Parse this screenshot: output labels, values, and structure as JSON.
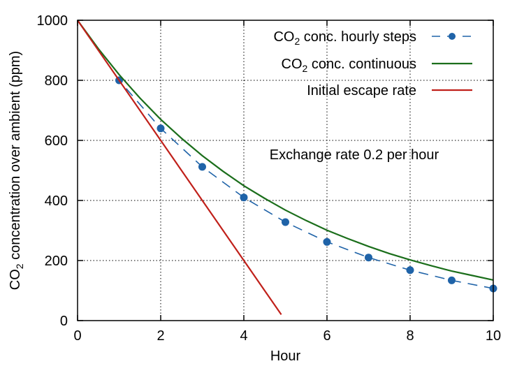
{
  "chart_data": {
    "type": "line",
    "xlabel": "Hour",
    "ylabel": {
      "prefix": "CO",
      "sub": "2",
      "suffix": " concentration over ambient (ppm)"
    },
    "xlim": [
      0,
      10
    ],
    "ylim": [
      0,
      1000
    ],
    "xticks": [
      0,
      2,
      4,
      6,
      8,
      10
    ],
    "yticks": [
      0,
      200,
      400,
      600,
      800,
      1000
    ],
    "grid": true,
    "legend_position": "top-right",
    "annotation": "Exchange rate 0.2 per hour",
    "series": [
      {
        "key": "hourly",
        "name": {
          "prefix": "CO",
          "sub": "2",
          "suffix": " conc. hourly steps"
        },
        "style": "dashed-points",
        "color": "#1f63a8",
        "x": [
          0,
          1,
          2,
          3,
          4,
          5,
          6,
          7,
          8,
          9,
          10
        ],
        "y": [
          1000,
          800,
          640,
          512,
          410,
          328,
          262,
          210,
          168,
          134,
          107
        ]
      },
      {
        "key": "continuous",
        "name": {
          "prefix": "CO",
          "sub": "2",
          "suffix": " conc. continuous"
        },
        "style": "solid",
        "color": "#1b6e1b",
        "x": [
          0,
          0.5,
          1,
          1.5,
          2,
          2.5,
          3,
          3.5,
          4,
          4.5,
          5,
          5.5,
          6,
          6.5,
          7,
          7.5,
          8,
          8.5,
          9,
          9.5,
          10
        ],
        "y": [
          1000,
          905,
          819,
          741,
          670,
          607,
          549,
          497,
          449,
          407,
          368,
          333,
          301,
          273,
          247,
          223,
          202,
          183,
          165,
          150,
          135
        ]
      },
      {
        "key": "initial",
        "name": "Initial escape rate",
        "style": "solid",
        "color": "#c0201a",
        "x": [
          0,
          4.9
        ],
        "y": [
          1000,
          20
        ]
      }
    ]
  }
}
